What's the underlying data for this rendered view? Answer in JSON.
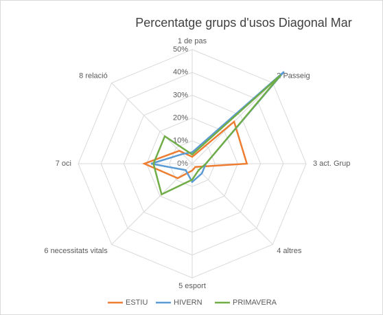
{
  "chart_data": {
    "type": "radar",
    "title": "Percentatge grups d'usos Diagonal Mar",
    "categories": [
      "1 de pas",
      "2 Passeig",
      "3 act. Grup",
      "4 altres",
      "5 esport",
      "6 necessitats vitals",
      "7 oci",
      "8 relació"
    ],
    "series": [
      {
        "name": "ESTIU",
        "color": "#ed7d31",
        "values": [
          3,
          26,
          24,
          2,
          3,
          9,
          21,
          8
        ]
      },
      {
        "name": "HIVERN",
        "color": "#5b9bd5",
        "values": [
          5,
          57,
          6,
          6,
          8,
          4,
          18,
          6
        ]
      },
      {
        "name": "PRIMAVERA",
        "color": "#70ad47",
        "values": [
          4,
          55,
          6,
          4,
          7,
          19,
          17,
          17
        ]
      }
    ],
    "ylim": [
      0,
      50
    ],
    "yticks": [
      {
        "value": 0,
        "label": "0%"
      },
      {
        "value": 10,
        "label": "10%"
      },
      {
        "value": 20,
        "label": "20%"
      },
      {
        "value": 30,
        "label": "30%"
      },
      {
        "value": 40,
        "label": "40%"
      },
      {
        "value": 50,
        "label": "50%"
      }
    ],
    "grid": true,
    "legend": "bottom"
  }
}
